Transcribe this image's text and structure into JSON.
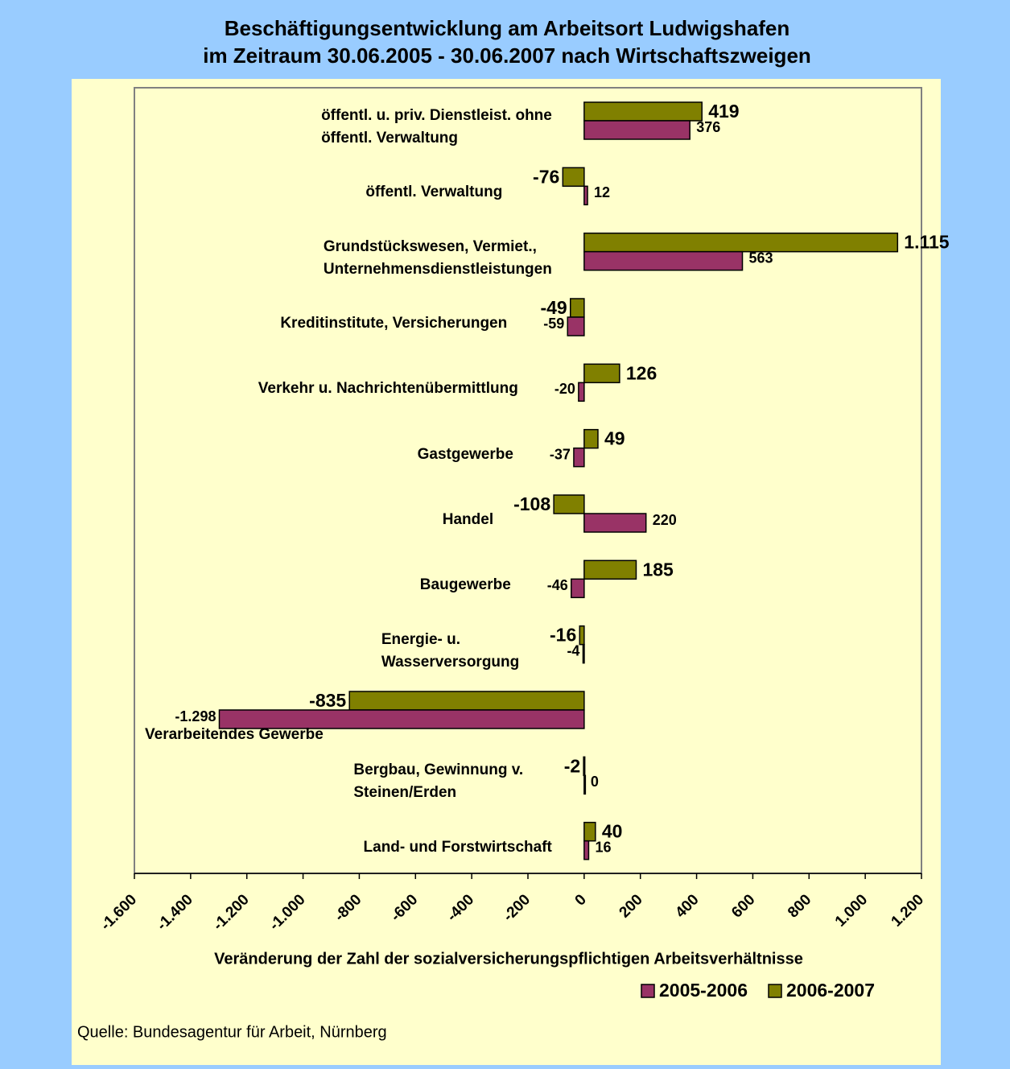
{
  "chart_data": {
    "type": "bar",
    "title": "Beschäftigungsentwicklung am Arbeitsort Ludwigshafen\nim Zeitraum 30.06.2005 - 30.06.2007 nach Wirtschaftszweigen",
    "x_label": "Veränderung der Zahl der sozialversicherungspflichtigen Arbeitsverhältnisse",
    "source": "Quelle: Bundesagentur für Arbeit, Nürnberg",
    "orientation": "horizontal",
    "categories": [
      "öffentl. u. priv. Dienstleist. ohne\nöffentl. Verwaltung",
      "öffentl. Verwaltung",
      "Grundstückswesen, Vermiet.,\nUnternehmensdienstleistungen",
      "Kreditinstitute, Versicherungen",
      "Verkehr u. Nachrichtenübermittlung",
      "Gastgewerbe",
      "Handel",
      "Baugewerbe",
      "Energie- u.\nWasserversorgung",
      "Verarbeitendes Gewerbe",
      "Bergbau, Gewinnung v.\nSteinen/Erden",
      "Land- und Forstwirtschaft"
    ],
    "series": [
      {
        "name": "2005-2006",
        "color": "#993366",
        "values": [
          376,
          12,
          563,
          -59,
          -20,
          -37,
          220,
          -46,
          -4,
          -1298,
          0,
          16
        ],
        "value_labels": [
          "376",
          "12",
          "563",
          "-59",
          "-20",
          "-37",
          "220",
          "-46",
          "-4",
          "-1.298",
          "0",
          "16"
        ]
      },
      {
        "name": "2006-2007",
        "color": "#808000",
        "values": [
          419,
          -76,
          1115,
          -49,
          126,
          49,
          -108,
          185,
          -16,
          -835,
          -2,
          40
        ],
        "value_labels": [
          "419",
          "-76",
          "1.115",
          "-49",
          "126",
          "49",
          "-108",
          "185",
          "-16",
          "-835",
          "-2",
          "40"
        ]
      }
    ],
    "xlim": [
      -1600,
      1200
    ],
    "xticks": [
      {
        "value": -1600,
        "label": "-1.600"
      },
      {
        "value": -1400,
        "label": "-1.400"
      },
      {
        "value": -1200,
        "label": "-1.200"
      },
      {
        "value": -1000,
        "label": "-1.000"
      },
      -800,
      -600,
      -400,
      -200,
      0,
      200,
      400,
      600,
      800,
      {
        "value": 1000,
        "label": "1.000"
      },
      {
        "value": 1200,
        "label": "1.200"
      }
    ],
    "legend": "bottom-right"
  }
}
